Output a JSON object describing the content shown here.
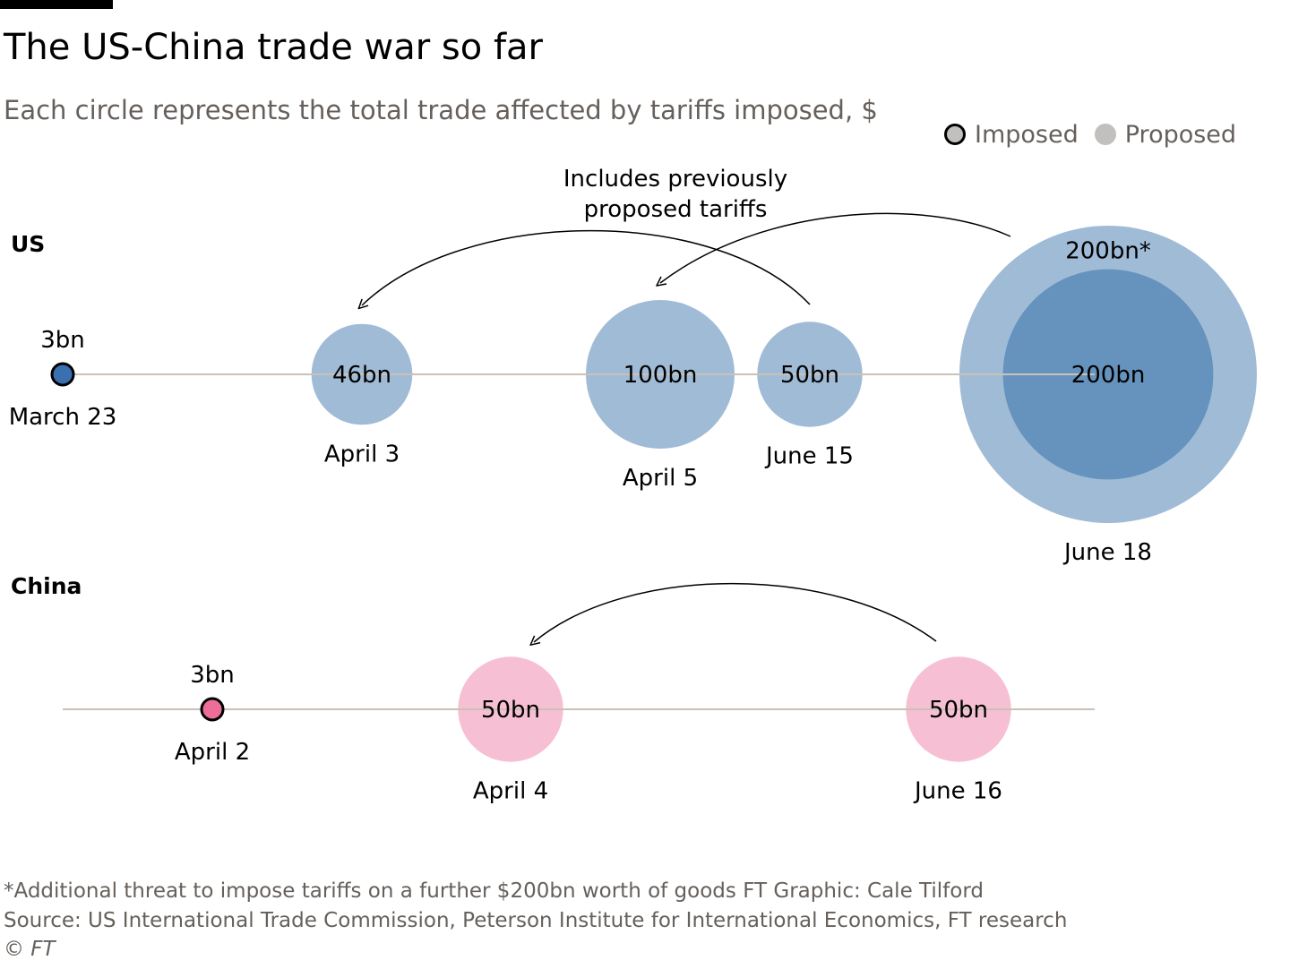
{
  "title": "The US-China trade war so far",
  "subtitle": "Each circle represents the total trade affected by tariffs imposed, $",
  "legend": {
    "imposed": "Imposed",
    "proposed": "Proposed"
  },
  "annotation": {
    "line1": "Includes previously",
    "line2": "proposed tariffs"
  },
  "colors": {
    "us_light": "#a0bbd6",
    "us_dark": "#6593bd",
    "us_imposed": "#3a6fb0",
    "china_light": "#f6bfd3",
    "china_imposed": "#ec6e99",
    "axis": "#ccc1b7",
    "text_muted": "#66605c"
  },
  "chart_data": {
    "type": "bubble-timeline",
    "title": "The US-China trade war so far",
    "subtitle": "Each circle represents the total trade affected by tariffs imposed, $",
    "rows": [
      {
        "name": "US",
        "events": [
          {
            "date": "March 23",
            "value": 3,
            "label": "3bn",
            "status": "imposed"
          },
          {
            "date": "April 3",
            "value": 46,
            "label": "46bn",
            "status": "proposed"
          },
          {
            "date": "April 5",
            "value": 100,
            "label": "100bn",
            "status": "proposed"
          },
          {
            "date": "June 15",
            "value": 50,
            "label": "50bn",
            "status": "proposed"
          },
          {
            "date": "June 18",
            "value": 200,
            "label": "200bn",
            "status": "proposed",
            "additional_value": 200,
            "additional_label": "200bn*"
          }
        ]
      },
      {
        "name": "China",
        "events": [
          {
            "date": "April 2",
            "value": 3,
            "label": "3bn",
            "status": "imposed"
          },
          {
            "date": "April 4",
            "value": 50,
            "label": "50bn",
            "status": "proposed"
          },
          {
            "date": "June 16",
            "value": 50,
            "label": "50bn",
            "status": "proposed"
          }
        ]
      }
    ],
    "arrows": [
      {
        "row": "US",
        "from": "June 15",
        "to": "April 3"
      },
      {
        "row": "US",
        "from": "June 18",
        "to": "April 5"
      },
      {
        "row": "China",
        "from": "June 16",
        "to": "April 4"
      }
    ]
  },
  "footnotes": {
    "line1": "*Additional threat to impose tariffs on a further $200bn worth of goods  FT Graphic: Cale Tilford",
    "line2": "Source: US International Trade Commission, Peterson Institute for International Economics, FT research",
    "line3": "© FT"
  }
}
